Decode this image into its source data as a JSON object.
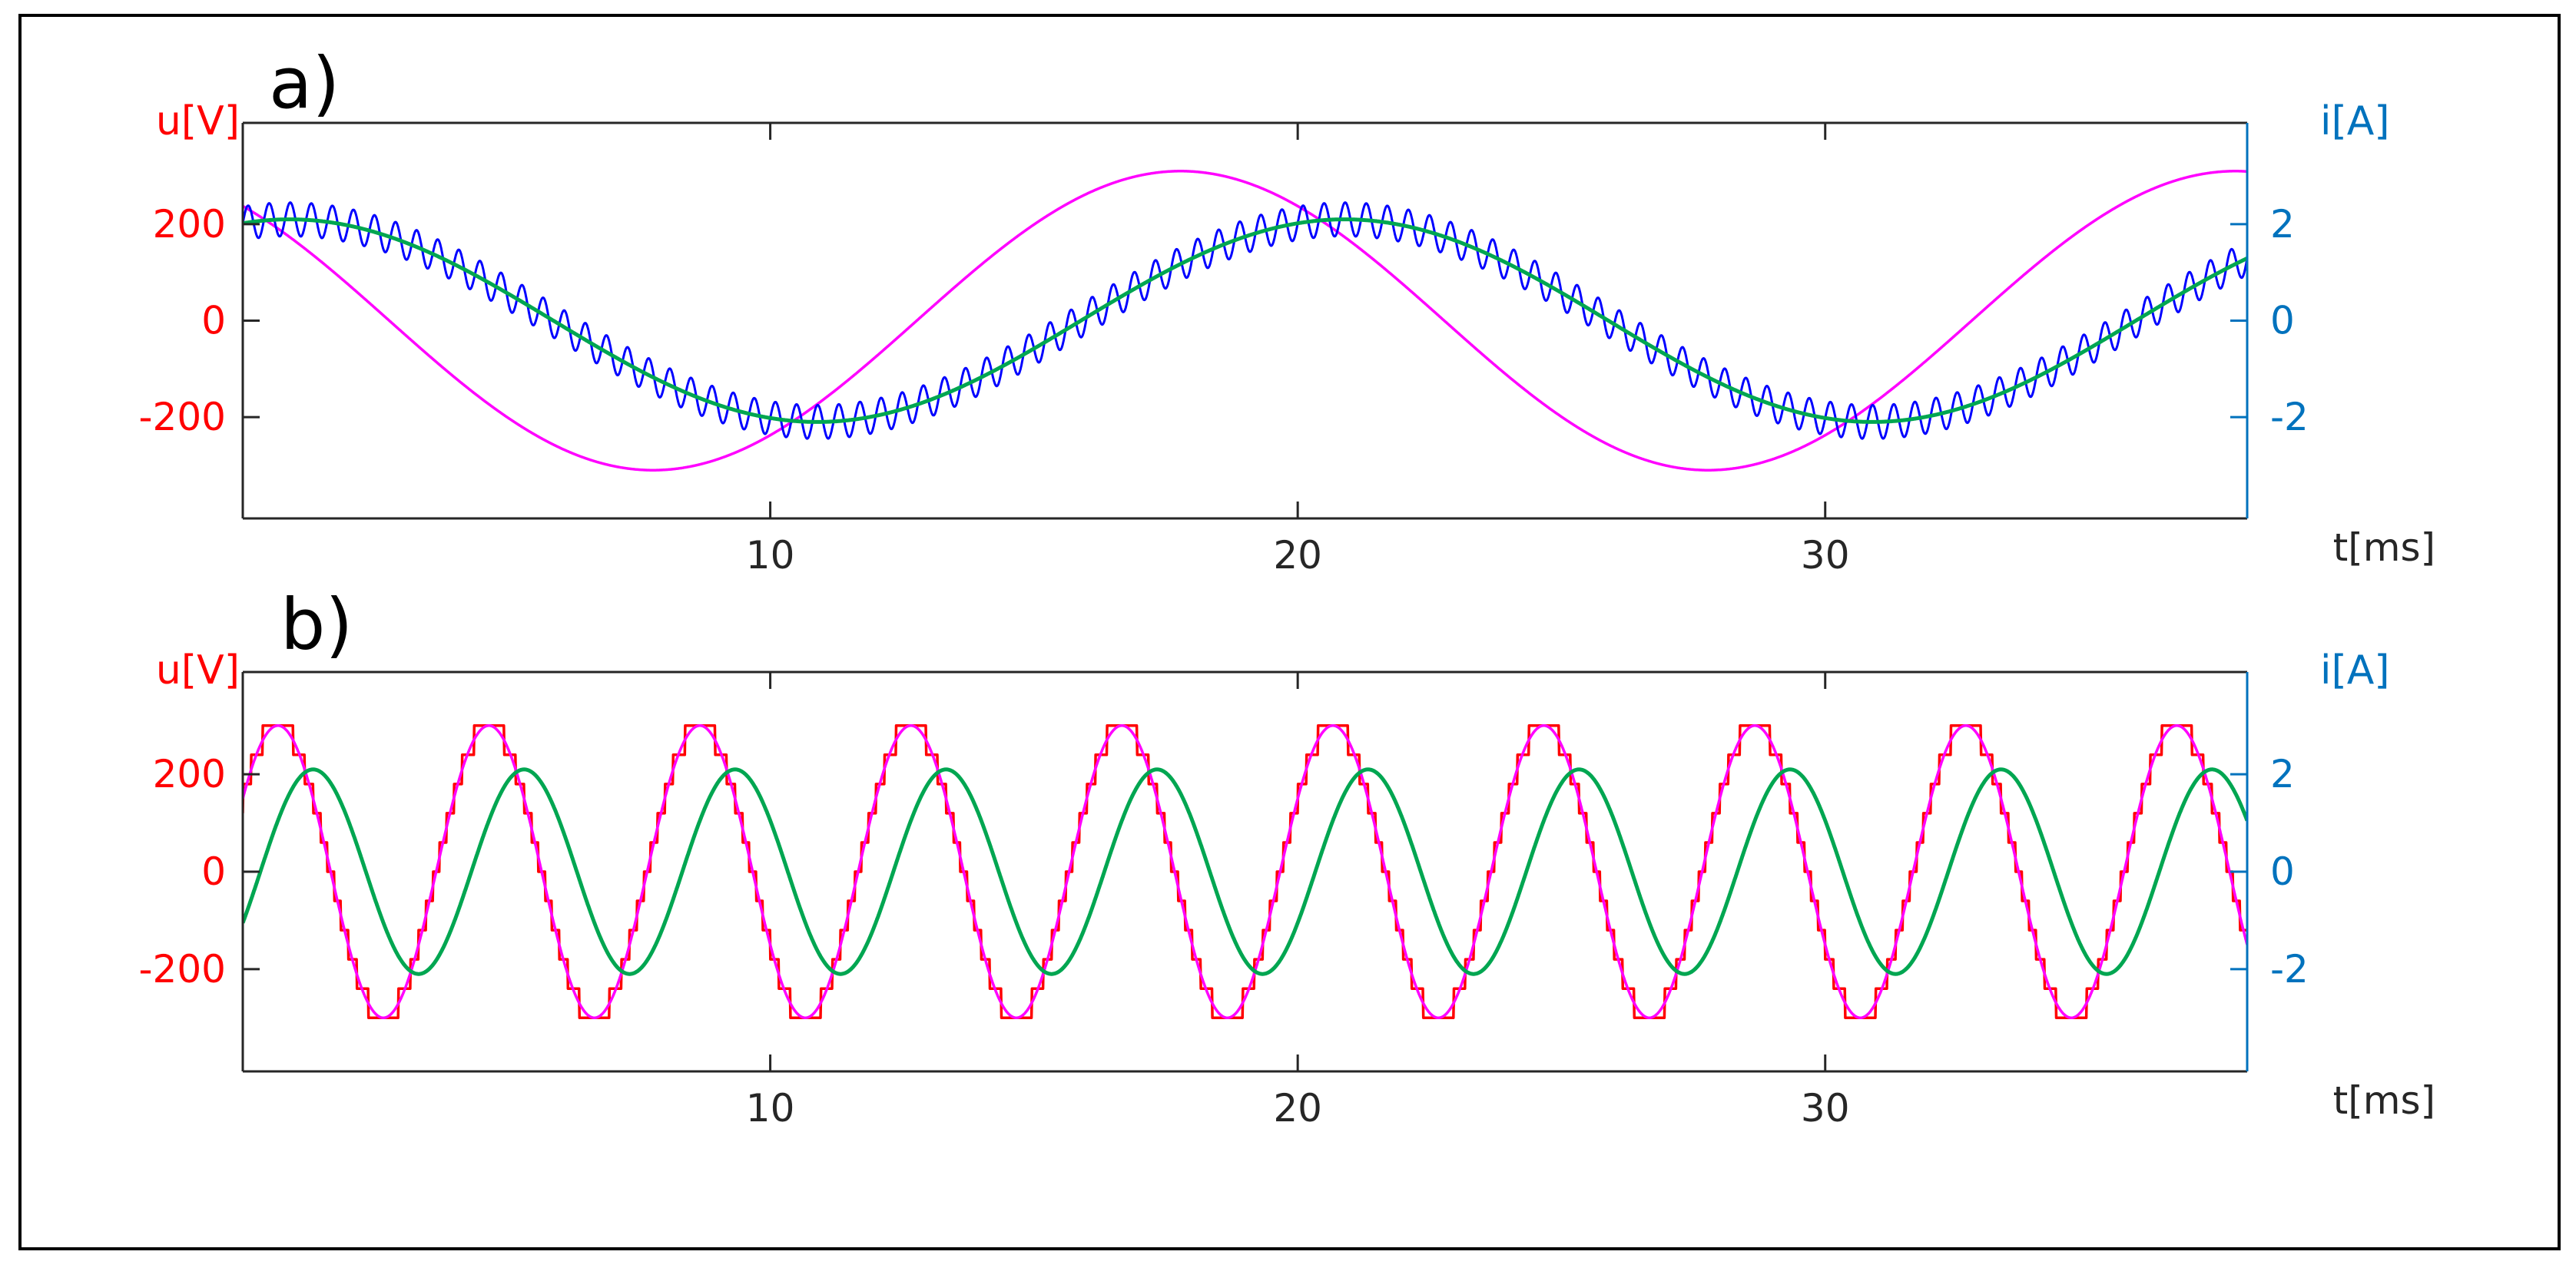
{
  "chart_data": [
    {
      "type": "line",
      "panel_label": "a)",
      "ylabel_left": "u[V]",
      "ylabel_right": "i[A]",
      "xlabel": "t[ms]",
      "xlim": [
        0,
        38
      ],
      "ylim_left": [
        -410,
        410
      ],
      "ylim_right": [
        -4.1,
        4.1
      ],
      "xticks": [
        10,
        20,
        30
      ],
      "yticks_left": [
        -200,
        0,
        200
      ],
      "yticks_right": [
        -2,
        0,
        2
      ],
      "xtick_labels": [
        "10",
        "20",
        "30"
      ],
      "ytick_labels_left": [
        "-200",
        "0",
        "200"
      ],
      "ytick_labels_right": [
        "-2",
        "0",
        "2"
      ],
      "frequency_hz": 50,
      "series": [
        {
          "axis": "left",
          "color": "#ff00ff",
          "kind": "sine",
          "amplitude": 310,
          "phase_deg": 130,
          "x": [
            0,
            3.5,
            8.5,
            13.5,
            18.5,
            23.5,
            28.5,
            33.5,
            38
          ],
          "y": [
            268,
            112,
            -310,
            0,
            310,
            0,
            -310,
            0,
            303
          ]
        },
        {
          "axis": "right",
          "color": "#0000ff",
          "kind": "sine_with_ripple",
          "amplitude": 2.1,
          "phase_deg": 74,
          "ripple": 0.35,
          "x": [
            0,
            1.1,
            6.1,
            11.1,
            16.1,
            21.1,
            26.1,
            31.1,
            36.1,
            38
          ],
          "y": [
            2.02,
            2.1,
            0,
            -2.1,
            0,
            2.1,
            0,
            -2.1,
            0,
            1.3
          ]
        },
        {
          "axis": "right",
          "color": "#00a651",
          "kind": "sine",
          "amplitude": 2.1,
          "phase_deg": 74,
          "x": [
            0,
            1.1,
            6.1,
            11.1,
            16.1,
            21.1,
            26.1,
            31.1,
            36.1,
            38
          ],
          "y": [
            2.02,
            2.1,
            0,
            -2.1,
            0,
            2.1,
            0,
            -2.1,
            0,
            1.3
          ]
        }
      ]
    },
    {
      "type": "line",
      "panel_label": "b)",
      "ylabel_left": "u[V]",
      "ylabel_right": "i[A]",
      "xlabel": "t[ms]",
      "xlim": [
        0,
        38
      ],
      "ylim_left": [
        -410,
        410
      ],
      "ylim_right": [
        -4.1,
        4.1
      ],
      "xticks": [
        10,
        20,
        30
      ],
      "yticks_left": [
        -200,
        0,
        200
      ],
      "yticks_right": [
        -2,
        0,
        2
      ],
      "xtick_labels": [
        "10",
        "20",
        "30"
      ],
      "ytick_labels_left": [
        "-200",
        "0",
        "200"
      ],
      "ytick_labels_right": [
        "-2",
        "0",
        "2"
      ],
      "frequency_hz": 250,
      "series": [
        {
          "axis": "left",
          "color": "#ff0000",
          "kind": "stepped_sine",
          "amplitude": 300,
          "phase_deg": 30,
          "levels": 5,
          "x": [
            0,
            0.67,
            2.67,
            4.67,
            6.67,
            8.67,
            10.67,
            12.67,
            14.67,
            16.67,
            18.67,
            20.67,
            22.67,
            24.67,
            26.67,
            28.67,
            30.67,
            32.67,
            34.67,
            36.67,
            38
          ],
          "y": [
            150,
            300,
            -300,
            300,
            -300,
            300,
            -300,
            300,
            -300,
            300,
            -300,
            300,
            -300,
            300,
            -300,
            300,
            -300,
            300,
            -300,
            300,
            -250
          ]
        },
        {
          "axis": "left",
          "color": "#ff00ff",
          "kind": "sine",
          "amplitude": 300,
          "phase_deg": 30,
          "x": [
            0,
            0.67,
            2.67,
            4.67,
            6.67,
            8.67,
            10.67,
            12.67,
            14.67,
            16.67,
            18.67,
            20.67,
            22.67,
            24.67,
            26.67,
            28.67,
            30.67,
            32.67,
            34.67,
            36.67,
            38
          ],
          "y": [
            150,
            300,
            -300,
            300,
            -300,
            300,
            -300,
            300,
            -300,
            300,
            -300,
            300,
            -300,
            300,
            -300,
            300,
            -300,
            300,
            -300,
            300,
            -250
          ]
        },
        {
          "axis": "right",
          "color": "#00a651",
          "kind": "sine",
          "amplitude": 2.1,
          "phase_deg": -30,
          "x": [
            0,
            1.33,
            3.33,
            5.33,
            7.33,
            9.33,
            11.33,
            13.33,
            15.33,
            17.33,
            19.33,
            21.33,
            23.33,
            25.33,
            27.33,
            29.33,
            31.33,
            33.33,
            35.33,
            37.33,
            38
          ],
          "y": [
            -1.05,
            2.1,
            -2.1,
            2.1,
            -2.1,
            2.1,
            -2.1,
            2.1,
            -2.1,
            2.1,
            -2.1,
            2.1,
            -2.1,
            2.1,
            -2.1,
            2.1,
            -2.1,
            2.1,
            -2.1,
            2.1,
            1.05
          ]
        }
      ]
    }
  ]
}
